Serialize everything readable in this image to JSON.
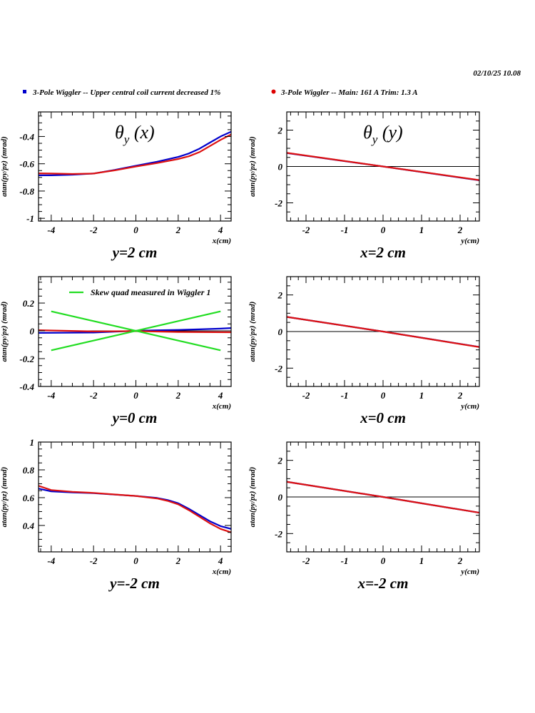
{
  "header": {
    "timestamp": "02/10/25   10.08"
  },
  "legend": [
    {
      "label": "3-Pole Wiggler -- Upper central coil current decreased 1%",
      "color": "#0000cc",
      "marker": "square"
    },
    {
      "label": "3-Pole Wiggler --  Main: 161 A    Trim: 1.3 A",
      "color": "#dd0000",
      "marker": "circle"
    }
  ],
  "colors": {
    "blue": "#0000cc",
    "red": "#dd1111",
    "green": "#22dd22",
    "frame": "#000000"
  },
  "chart_data": [
    {
      "id": "theta-y-x-y2",
      "type": "line",
      "title": "θ",
      "title_sub": "y",
      "title_arg": " (x)",
      "caption": "y=2 cm",
      "xlabel": "x(cm)",
      "ylabel": "atan(py/pz) (mrad)",
      "xlim": [
        -4.6,
        4.5
      ],
      "ylim": [
        -1.02,
        -0.22
      ],
      "xticks": [
        -4,
        -2,
        0,
        2,
        4
      ],
      "xtick_labels": [
        "-4",
        "-2",
        "0",
        "2",
        "4"
      ],
      "xminor": 0.5,
      "yticks": [
        -1,
        -0.8,
        -0.6,
        -0.4
      ],
      "ytick_labels": [
        "-1",
        "-0.8",
        "-0.6",
        "-0.4"
      ],
      "yminor": 0.05,
      "zero_line": false,
      "series": [
        {
          "name": "Upper central coil current decreased 1%",
          "color": "blue",
          "x": [
            -4.6,
            -4,
            -3,
            -2,
            -1,
            0,
            1,
            2,
            2.5,
            3,
            3.5,
            4,
            4.5
          ],
          "y": [
            -0.685,
            -0.685,
            -0.68,
            -0.672,
            -0.645,
            -0.615,
            -0.585,
            -0.55,
            -0.525,
            -0.49,
            -0.445,
            -0.4,
            -0.365
          ]
        },
        {
          "name": "Main: 161 A  Trim: 1.3 A",
          "color": "red",
          "x": [
            -4.6,
            -4,
            -3,
            -2,
            -1,
            0,
            1,
            2,
            2.5,
            3,
            3.5,
            4,
            4.5
          ],
          "y": [
            -0.67,
            -0.672,
            -0.675,
            -0.672,
            -0.648,
            -0.62,
            -0.595,
            -0.565,
            -0.545,
            -0.515,
            -0.47,
            -0.425,
            -0.385
          ]
        }
      ]
    },
    {
      "id": "theta-y-y-x2",
      "type": "line",
      "title": "θ",
      "title_sub": "y",
      "title_arg": " (y)",
      "caption": "x=2 cm",
      "xlabel": "y(cm)",
      "ylabel": "atan(py/pz) (mrad)",
      "xlim": [
        -2.5,
        2.5
      ],
      "ylim": [
        -3,
        3
      ],
      "xticks": [
        -2,
        -1,
        0,
        1,
        2
      ],
      "xtick_labels": [
        "-2",
        "-1",
        "0",
        "1",
        "2"
      ],
      "xminor": 0.2,
      "yticks": [
        -2,
        0,
        2
      ],
      "ytick_labels": [
        "-2",
        "0",
        "2"
      ],
      "yminor": 0.5,
      "zero_line": true,
      "series": [
        {
          "name": "Upper central coil current decreased 1%",
          "color": "blue",
          "x": [
            -2.5,
            0,
            2.5
          ],
          "y": [
            0.74,
            0.0,
            -0.76
          ]
        },
        {
          "name": "Main: 161 A  Trim: 1.3 A",
          "color": "red",
          "x": [
            -2.5,
            0,
            2.5
          ],
          "y": [
            0.75,
            0.0,
            -0.75
          ]
        }
      ]
    },
    {
      "id": "theta-y-x-y0",
      "type": "line",
      "title": "",
      "title_sub": "",
      "title_arg": "",
      "caption": "y=0 cm",
      "xlabel": "x(cm)",
      "ylabel": "atan(py/pz) (mrad)",
      "xlim": [
        -4.6,
        4.5
      ],
      "ylim": [
        -0.4,
        0.39
      ],
      "xticks": [
        -4,
        -2,
        0,
        2,
        4
      ],
      "xtick_labels": [
        "-4",
        "-2",
        "0",
        "2",
        "4"
      ],
      "xminor": 0.5,
      "yticks": [
        -0.4,
        -0.2,
        0,
        0.2
      ],
      "ytick_labels": [
        "-0.4",
        "-0.2",
        "0",
        "0.2"
      ],
      "yminor": 0.05,
      "zero_line": true,
      "inner_legend": {
        "label": "Skew quad measured in Wiggler 1",
        "color": "green"
      },
      "series": [
        {
          "name": "Upper central coil current decreased 1%",
          "color": "blue",
          "x": [
            -4.6,
            -2,
            -1,
            0,
            1,
            2,
            3,
            4,
            4.5
          ],
          "y": [
            -0.015,
            -0.012,
            -0.006,
            0.0,
            0.004,
            0.007,
            0.011,
            0.016,
            0.02
          ]
        },
        {
          "name": "Main: 161 A  Trim: 1.3 A",
          "color": "red",
          "x": [
            -4.6,
            -2,
            0,
            2,
            4.5
          ],
          "y": [
            0.005,
            -0.004,
            -0.002,
            -0.008,
            -0.01
          ]
        },
        {
          "name": "Skew quad measured in Wiggler 1 (+)",
          "color": "green",
          "x": [
            -4,
            4
          ],
          "y": [
            -0.14,
            0.14
          ]
        },
        {
          "name": "Skew quad measured in Wiggler 1 (-)",
          "color": "green",
          "x": [
            -4,
            4
          ],
          "y": [
            0.14,
            -0.14
          ]
        }
      ]
    },
    {
      "id": "theta-y-y-x0",
      "type": "line",
      "title": "",
      "title_sub": "",
      "title_arg": "",
      "caption": "x=0 cm",
      "xlabel": "y(cm)",
      "ylabel": "atan(py/pz) (mrad)",
      "xlim": [
        -2.5,
        2.5
      ],
      "ylim": [
        -3,
        3
      ],
      "xticks": [
        -2,
        -1,
        0,
        1,
        2
      ],
      "xtick_labels": [
        "-2",
        "-1",
        "0",
        "1",
        "2"
      ],
      "xminor": 0.2,
      "yticks": [
        -2,
        0,
        2
      ],
      "ytick_labels": [
        "-2",
        "0",
        "2"
      ],
      "yminor": 0.5,
      "zero_line": true,
      "series": [
        {
          "name": "Upper central coil current decreased 1%",
          "color": "blue",
          "x": [
            -2.5,
            0,
            2.5
          ],
          "y": [
            0.8,
            0.0,
            -0.84
          ]
        },
        {
          "name": "Main: 161 A  Trim: 1.3 A",
          "color": "red",
          "x": [
            -2.5,
            0,
            2.5
          ],
          "y": [
            0.8,
            0.0,
            -0.85
          ]
        }
      ]
    },
    {
      "id": "theta-y-x-ym2",
      "type": "line",
      "title": "",
      "title_sub": "",
      "title_arg": "",
      "caption": "y=-2 cm",
      "xlabel": "x(cm)",
      "ylabel": "atan(py/pz) (mrad)",
      "xlim": [
        -4.6,
        4.5
      ],
      "ylim": [
        0.21,
        1.0
      ],
      "xticks": [
        -4,
        -2,
        0,
        2,
        4
      ],
      "xtick_labels": [
        "-4",
        "-2",
        "0",
        "2",
        "4"
      ],
      "xminor": 0.5,
      "yticks": [
        0.4,
        0.6,
        0.8,
        1.0
      ],
      "ytick_labels": [
        "0.4",
        "0.6",
        "0.8",
        "1"
      ],
      "yminor": 0.05,
      "zero_line": false,
      "series": [
        {
          "name": "Upper central coil current decreased 1%",
          "color": "blue",
          "x": [
            -4.6,
            -4,
            -3,
            -2,
            -1,
            0,
            1,
            1.5,
            2,
            2.5,
            3,
            3.5,
            4,
            4.5
          ],
          "y": [
            0.665,
            0.645,
            0.638,
            0.632,
            0.622,
            0.612,
            0.598,
            0.583,
            0.56,
            0.52,
            0.475,
            0.43,
            0.395,
            0.375
          ]
        },
        {
          "name": "Main: 161 A  Trim: 1.3 A",
          "color": "red",
          "x": [
            -4.6,
            -4,
            -3,
            -2,
            -1,
            0,
            1,
            1.5,
            2,
            2.5,
            3,
            3.5,
            4,
            4.5
          ],
          "y": [
            0.685,
            0.655,
            0.642,
            0.634,
            0.623,
            0.612,
            0.594,
            0.577,
            0.552,
            0.51,
            0.463,
            0.415,
            0.375,
            0.35
          ]
        }
      ]
    },
    {
      "id": "theta-y-y-xm2",
      "type": "line",
      "title": "",
      "title_sub": "",
      "title_arg": "",
      "caption": "x=-2 cm",
      "xlabel": "y(cm)",
      "ylabel": "atan(py/pz) (mrad)",
      "xlim": [
        -2.5,
        2.5
      ],
      "ylim": [
        -3,
        3
      ],
      "xticks": [
        -2,
        -1,
        0,
        1,
        2
      ],
      "xtick_labels": [
        "-2",
        "-1",
        "0",
        "1",
        "2"
      ],
      "xminor": 0.2,
      "yticks": [
        -2,
        0,
        2
      ],
      "ytick_labels": [
        "-2",
        "0",
        "2"
      ],
      "yminor": 0.5,
      "zero_line": true,
      "series": [
        {
          "name": "Upper central coil current decreased 1%",
          "color": "blue",
          "x": [
            -2.5,
            0,
            2.5
          ],
          "y": [
            0.83,
            0.0,
            -0.86
          ]
        },
        {
          "name": "Main: 161 A  Trim: 1.3 A",
          "color": "red",
          "x": [
            -2.5,
            0,
            2.5
          ],
          "y": [
            0.83,
            0.0,
            -0.86
          ]
        }
      ]
    }
  ]
}
